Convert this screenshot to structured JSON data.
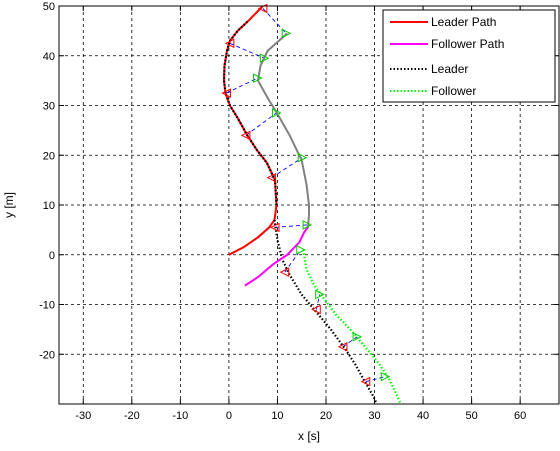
{
  "chart_data": {
    "type": "line",
    "xlabel": "x [s]",
    "ylabel": "y [m]",
    "xlim": [
      -35,
      68
    ],
    "ylim": [
      -30,
      50
    ],
    "xticks": [
      -30,
      -20,
      -10,
      0,
      10,
      20,
      30,
      40,
      50,
      60
    ],
    "yticks": [
      -20,
      -10,
      0,
      10,
      20,
      30,
      40,
      50
    ],
    "grid": true,
    "legend_position": "top-right",
    "series": [
      {
        "name": "Leader Path",
        "color": "#ff0000",
        "style": "solid",
        "points": [
          [
            0,
            0
          ],
          [
            3,
            1.5
          ],
          [
            6,
            3.5
          ],
          [
            8.3,
            5.5
          ],
          [
            9.4,
            7
          ],
          [
            9.8,
            10
          ],
          [
            9.5,
            15
          ],
          [
            7.8,
            18.5
          ],
          [
            5.8,
            21
          ],
          [
            3.8,
            24
          ],
          [
            1.8,
            27.5
          ],
          [
            0.2,
            30
          ],
          [
            -0.7,
            32.5
          ],
          [
            -1,
            35
          ],
          [
            -0.9,
            38
          ],
          [
            -0.4,
            41
          ],
          [
            0.2,
            43
          ],
          [
            1.8,
            45
          ],
          [
            4,
            47
          ],
          [
            6,
            49
          ],
          [
            7,
            50
          ]
        ]
      },
      {
        "name": "Follower Path",
        "color": "#ff00ff",
        "style": "solid",
        "points": [
          [
            3.3,
            -6.2
          ],
          [
            6,
            -4.5
          ],
          [
            9,
            -2
          ],
          [
            12,
            0
          ],
          [
            14.5,
            2.5
          ],
          [
            15.5,
            4.5
          ],
          [
            16.2,
            5.5
          ]
        ]
      },
      {
        "name": "Leader",
        "color": "#000000",
        "style": "dotted",
        "points": [
          [
            9.4,
            7
          ],
          [
            10,
            3
          ],
          [
            11,
            -1
          ],
          [
            12.5,
            -4
          ],
          [
            15,
            -8
          ],
          [
            18,
            -11.5
          ],
          [
            21,
            -15
          ],
          [
            24,
            -19
          ],
          [
            26,
            -22
          ],
          [
            28,
            -25.5
          ],
          [
            29.5,
            -28
          ],
          [
            30.5,
            -30
          ],
          [
            9.8,
            10
          ],
          [
            9.5,
            15
          ],
          [
            7.8,
            18.5
          ],
          [
            5.8,
            21
          ],
          [
            3.8,
            24
          ],
          [
            1.8,
            27.5
          ],
          [
            0.2,
            30
          ],
          [
            -0.7,
            32.5
          ],
          [
            -1,
            35
          ],
          [
            -0.9,
            38
          ],
          [
            -0.4,
            41
          ],
          [
            0.2,
            43
          ],
          [
            1.8,
            45
          ],
          [
            4,
            47
          ]
        ]
      },
      {
        "name": "Follower",
        "color": "#00ff00",
        "style": "dotted",
        "points": [
          [
            15.3,
            1
          ],
          [
            16,
            -3
          ],
          [
            17.5,
            -6
          ],
          [
            19,
            -8
          ],
          [
            22,
            -12
          ],
          [
            25,
            -15
          ],
          [
            28.5,
            -19
          ],
          [
            31,
            -22
          ],
          [
            33,
            -25
          ],
          [
            34.5,
            -28
          ],
          [
            35.4,
            -30
          ]
        ]
      }
    ],
    "follower_trail": {
      "color": "#808080",
      "points": [
        [
          15.5,
          4.5
        ],
        [
          16.3,
          5.5
        ],
        [
          16.5,
          8
        ],
        [
          16.5,
          10
        ],
        [
          16,
          14
        ],
        [
          15,
          19
        ],
        [
          12.5,
          24
        ],
        [
          10.2,
          28
        ],
        [
          8,
          31.5
        ],
        [
          6,
          35
        ],
        [
          6.5,
          38
        ],
        [
          8,
          41
        ],
        [
          12,
          44.5
        ]
      ]
    },
    "leader_markers": [
      [
        7,
        49.5
      ],
      [
        0.2,
        42.5
      ],
      [
        -0.5,
        32.5
      ],
      [
        3.5,
        24
      ],
      [
        8.8,
        15.5
      ],
      [
        9.5,
        5.5
      ],
      [
        11.5,
        -3.5
      ],
      [
        18,
        -11
      ],
      [
        23.5,
        -18.5
      ],
      [
        28.2,
        -25.5
      ]
    ],
    "follower_markers": [
      [
        11.8,
        44.5
      ],
      [
        7.3,
        39.5
      ],
      [
        5.9,
        35.5
      ],
      [
        9.8,
        28.5
      ],
      [
        15.1,
        19.5
      ],
      [
        16.1,
        6
      ],
      [
        14.8,
        1
      ],
      [
        18.7,
        -8
      ],
      [
        26.4,
        -16.5
      ],
      [
        32.2,
        -24.5
      ]
    ]
  }
}
